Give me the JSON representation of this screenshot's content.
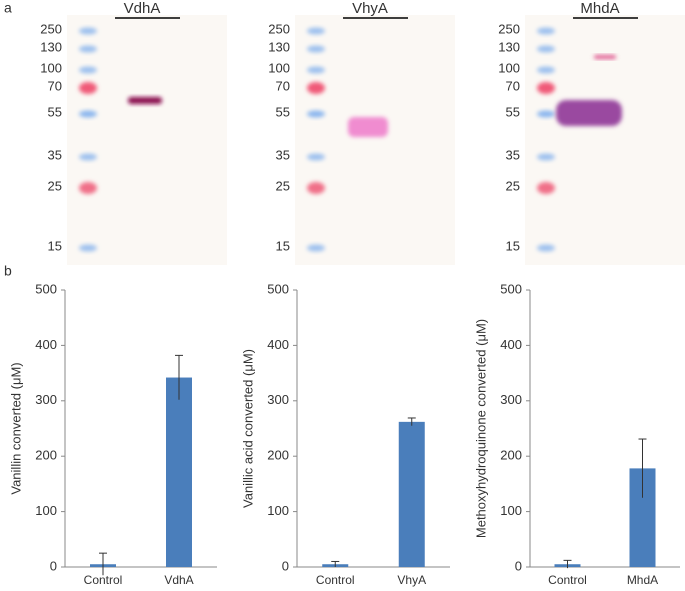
{
  "panel_labels": [
    "a",
    "b"
  ],
  "gels": [
    {
      "title": "VdhA",
      "markers": [
        250,
        130,
        100,
        70,
        55,
        35,
        25,
        15
      ]
    },
    {
      "title": "VhyA",
      "markers": [
        250,
        130,
        100,
        70,
        55,
        35,
        25,
        15
      ]
    },
    {
      "title": "MhdA",
      "markers": [
        250,
        130,
        100,
        70,
        55,
        35,
        25,
        15
      ]
    }
  ],
  "chart_data": [
    {
      "type": "bar",
      "y_label": "Vanillin converted (μM)",
      "categories": [
        "Control",
        "VdhA"
      ],
      "values": [
        5,
        342
      ],
      "errors": [
        20,
        40
      ],
      "color": "#4a7ebb",
      "ylim": [
        0,
        500
      ],
      "yticks": [
        0,
        100,
        200,
        300,
        400,
        500
      ]
    },
    {
      "type": "bar",
      "y_label": "Vanillic acid converted (μM)",
      "categories": [
        "Control",
        "VhyA"
      ],
      "values": [
        5,
        262
      ],
      "errors": [
        5,
        7
      ],
      "color": "#4a7ebb",
      "ylim": [
        0,
        500
      ],
      "yticks": [
        0,
        100,
        200,
        300,
        400,
        500
      ]
    },
    {
      "type": "bar",
      "y_label": "Methoxyhydroquinone converted (μM)",
      "categories": [
        "Control",
        "MhdA"
      ],
      "values": [
        5,
        178
      ],
      "errors": [
        7,
        53
      ],
      "color": "#4a7ebb",
      "ylim": [
        0,
        500
      ],
      "yticks": [
        0,
        100,
        200,
        300,
        400,
        500
      ]
    }
  ]
}
